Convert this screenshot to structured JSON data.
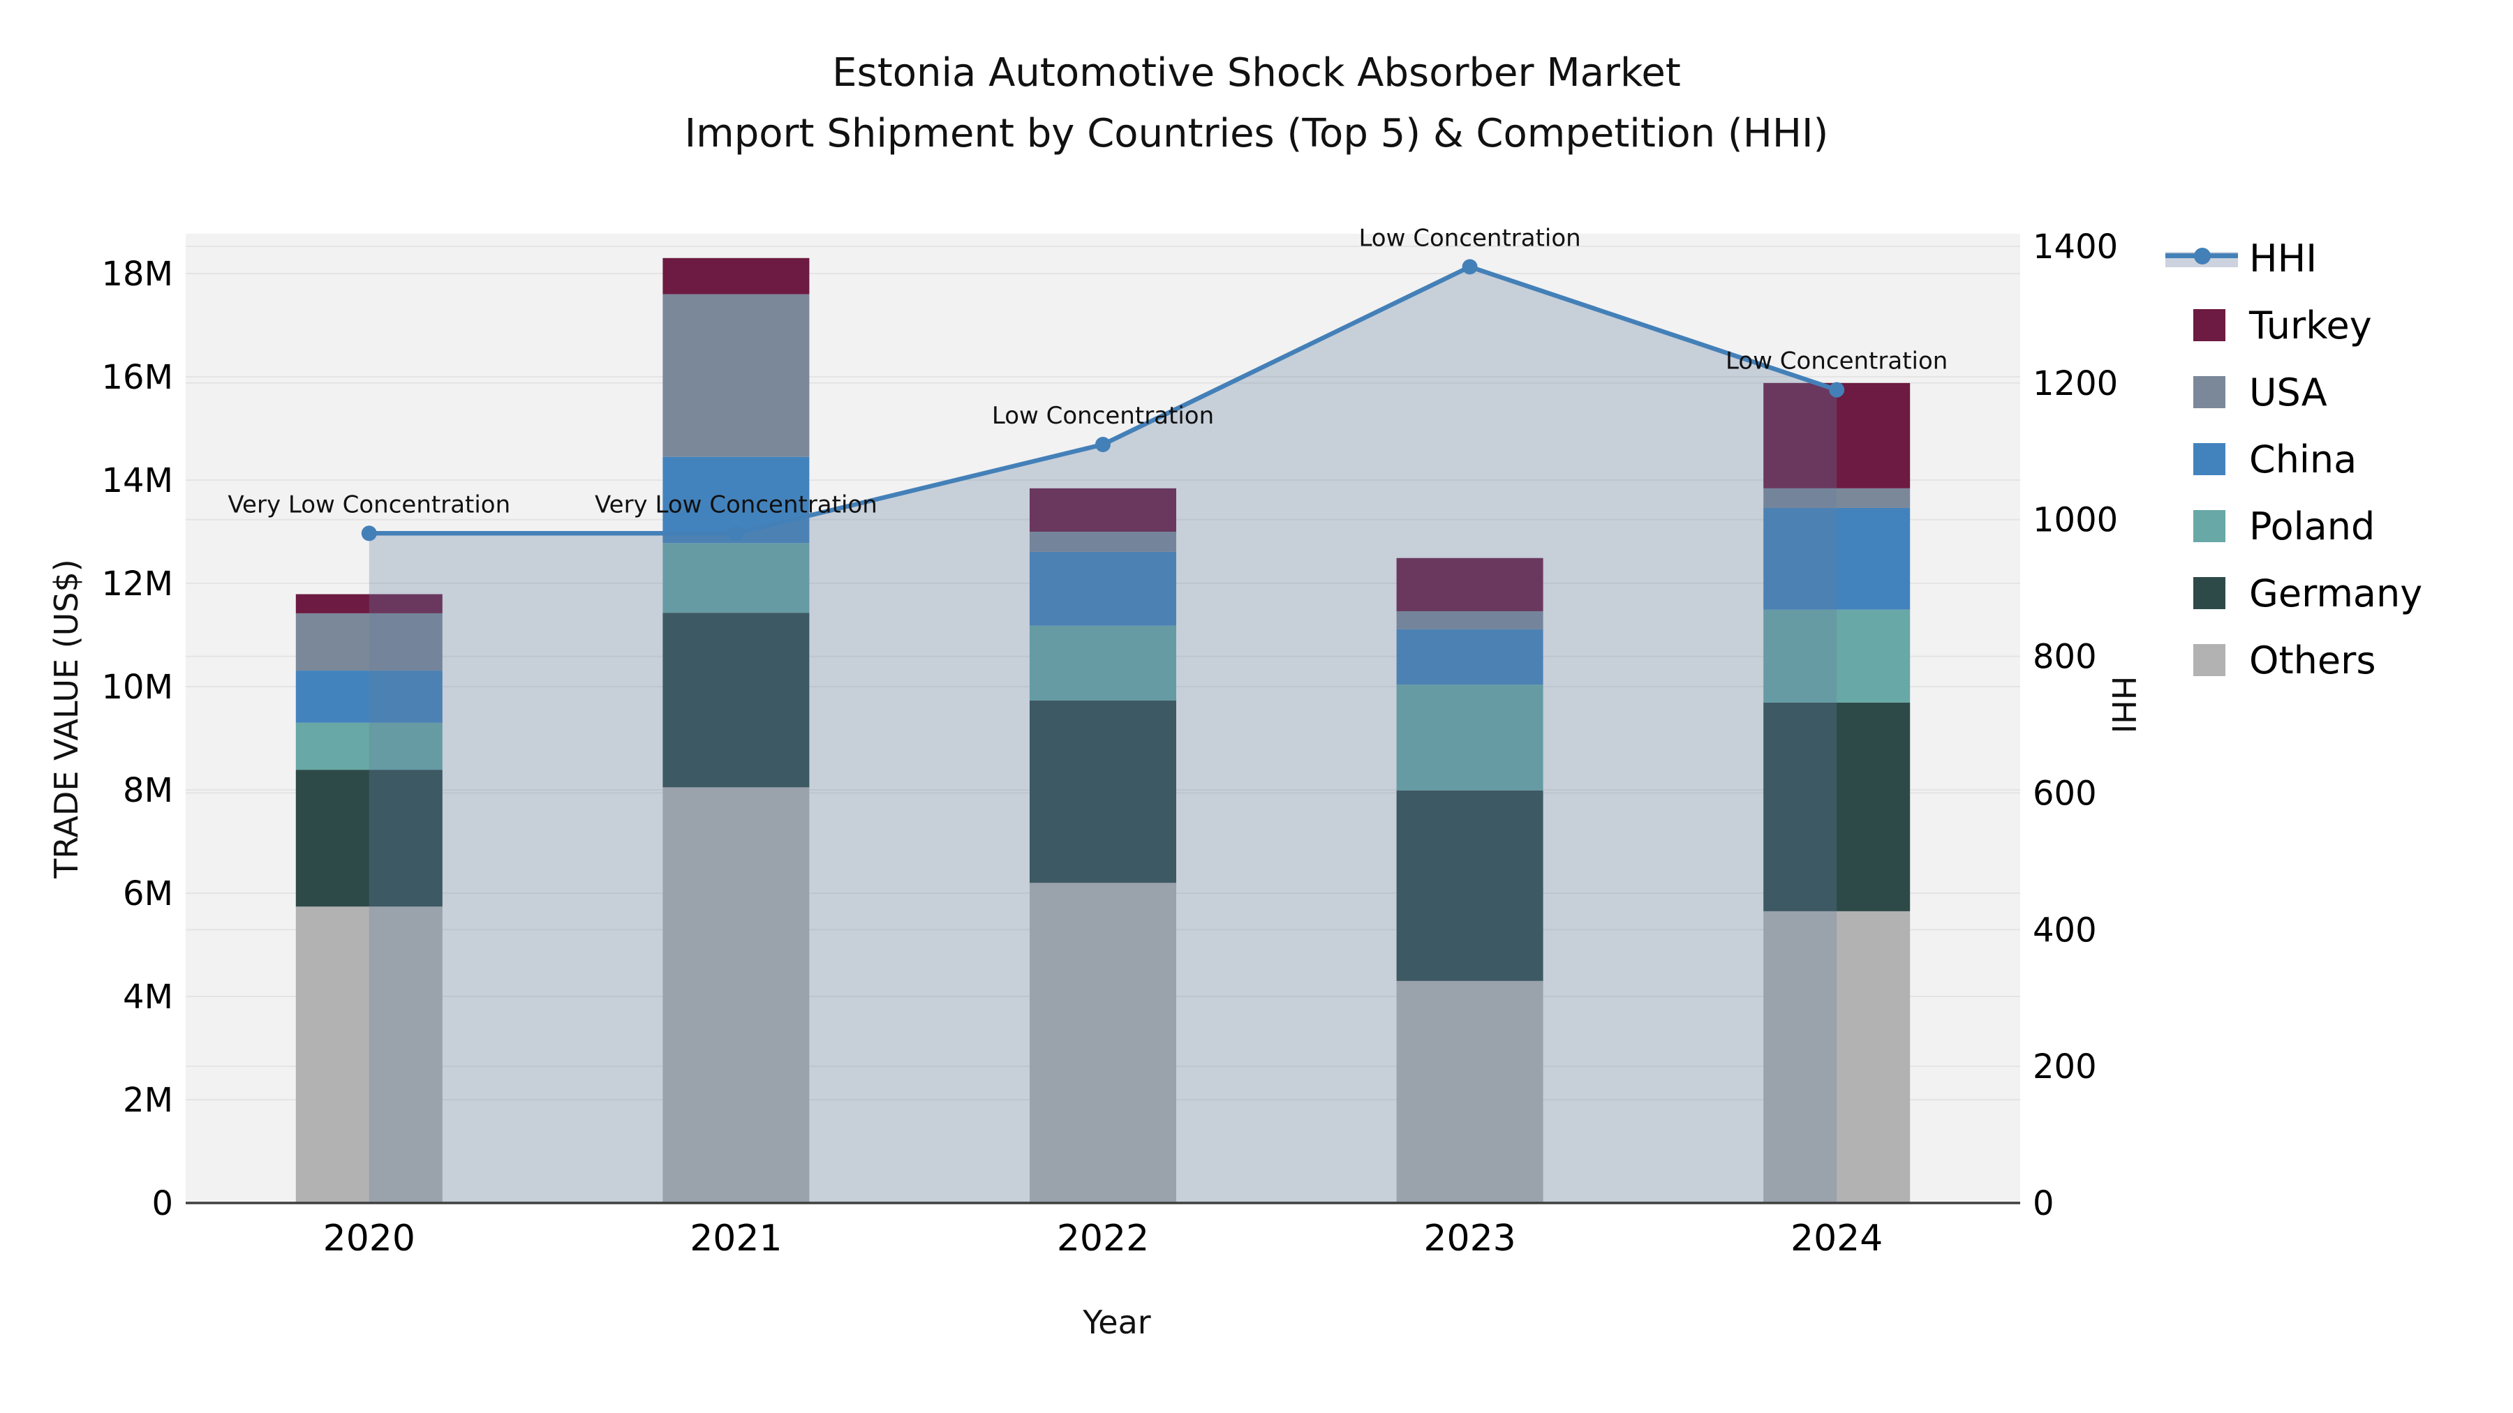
{
  "title": {
    "line1": "Estonia Automotive Shock Absorber Market",
    "line2": "Import Shipment by Countries (Top 5) & Competition (HHI)"
  },
  "axes": {
    "left": {
      "label": "TRADE VALUE (US$)",
      "ticks": [
        "0",
        "2M",
        "4M",
        "6M",
        "8M",
        "10M",
        "12M",
        "14M",
        "16M",
        "18M"
      ]
    },
    "right": {
      "label": "HHI",
      "ticks": [
        "0",
        "200",
        "400",
        "600",
        "800",
        "1000",
        "1200",
        "1400"
      ]
    },
    "x": {
      "label": "Year",
      "ticks": [
        "2020",
        "2021",
        "2022",
        "2023",
        "2024"
      ]
    }
  },
  "legend": {
    "items": [
      {
        "label": "HHI",
        "type": "line",
        "color": "#4480b8",
        "fill": "#ccd3de"
      },
      {
        "label": "Turkey",
        "type": "square",
        "color": "#6d1b42"
      },
      {
        "label": "USA",
        "type": "square",
        "color": "#7b889a"
      },
      {
        "label": "China",
        "type": "square",
        "color": "#4383bd"
      },
      {
        "label": "Poland",
        "type": "square",
        "color": "#68a8a6"
      },
      {
        "label": "Germany",
        "type": "square",
        "color": "#2d4a49"
      },
      {
        "label": "Others",
        "type": "square",
        "color": "#b2b2b2"
      }
    ]
  },
  "chart_data": {
    "type": "bar+line",
    "subtype": "stacked bars (left axis, trade value US$) with HHI line + area fill (right axis)",
    "categories": [
      "2020",
      "2021",
      "2022",
      "2023",
      "2024"
    ],
    "unit": "USD millions",
    "series": [
      {
        "name": "Others",
        "color": "#b2b2b2",
        "values": [
          5.74,
          8.05,
          6.2,
          4.3,
          5.65
        ]
      },
      {
        "name": "Germany",
        "color": "#2d4a49",
        "values": [
          2.65,
          3.38,
          3.53,
          3.69,
          4.04
        ]
      },
      {
        "name": "Poland",
        "color": "#68a8a6",
        "values": [
          0.91,
          1.35,
          1.45,
          2.05,
          1.8
        ]
      },
      {
        "name": "China",
        "color": "#4383bd",
        "values": [
          1.01,
          1.67,
          1.43,
          1.07,
          1.97
        ]
      },
      {
        "name": "USA",
        "color": "#7b889a",
        "values": [
          1.11,
          3.15,
          0.39,
          0.35,
          0.38
        ]
      },
      {
        "name": "Turkey",
        "color": "#6d1b42",
        "values": [
          0.37,
          0.7,
          0.84,
          1.03,
          2.04
        ]
      }
    ],
    "totals": [
      11.79,
      18.3,
      13.84,
      12.49,
      15.88
    ],
    "line": {
      "name": "HHI",
      "color": "#4480b8",
      "area_fill": "rgba(100,125,160,0.30)",
      "values": [
        980,
        980,
        1110,
        1370,
        1190
      ]
    },
    "annotations": [
      "Very Low Concentration",
      "Very Low Concentration",
      "Low Concentration",
      "Low Concentration",
      "Low Concentration"
    ],
    "title": "Estonia Automotive Shock Absorber Market — Import Shipment by Countries (Top 5) & Competition (HHI)",
    "xlabel": "Year",
    "ylabel": "TRADE VALUE (US$)",
    "y2label": "HHI",
    "ylim": [
      0,
      18770000
    ],
    "y2lim": [
      0,
      1418
    ],
    "grid": true,
    "legend_position": "right",
    "plot_bg": "#f2f2f2",
    "grid_color": "#e4e4e4",
    "axisline_color": "#3f3f3f"
  }
}
